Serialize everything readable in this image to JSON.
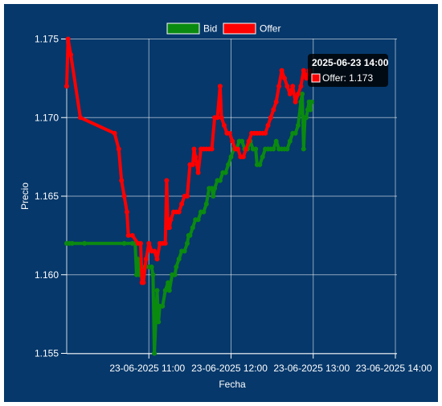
{
  "chart_data": {
    "type": "line",
    "xlabel": "Fecha",
    "ylabel": "Precio",
    "ylim": [
      1.155,
      1.175
    ],
    "yticks": [
      "1.175",
      "1.170",
      "1.165",
      "1.160",
      "1.155"
    ],
    "xticks": [
      "23-06-2025 11:00",
      "23-06-2025 12:00",
      "23-06-2025 13:00",
      "23-06-2025 14:00"
    ],
    "x_unit": "minutes since 23-06-2025 10:00",
    "legend_position": "top-center",
    "grid": true,
    "series": [
      {
        "name": "Bid",
        "color": "#0b8a10",
        "points": [
          [
            0,
            1.162
          ],
          [
            2,
            1.162
          ],
          [
            4,
            1.162
          ],
          [
            13,
            1.162
          ],
          [
            42,
            1.162
          ],
          [
            48,
            1.162
          ],
          [
            50,
            1.162
          ],
          [
            51,
            1.16
          ],
          [
            52,
            1.161
          ],
          [
            53,
            1.16
          ],
          [
            55,
            1.1605
          ],
          [
            60,
            1.1605
          ],
          [
            62,
            1.1605
          ],
          [
            63,
            1.16
          ],
          [
            64,
            1.155
          ],
          [
            65,
            1.157
          ],
          [
            66,
            1.159
          ],
          [
            67,
            1.157
          ],
          [
            68,
            1.158
          ],
          [
            70,
            1.158
          ],
          [
            72,
            1.159
          ],
          [
            74,
            1.1595
          ],
          [
            75,
            1.159
          ],
          [
            77,
            1.16
          ],
          [
            79,
            1.16
          ],
          [
            80,
            1.1605
          ],
          [
            82,
            1.161
          ],
          [
            84,
            1.1615
          ],
          [
            86,
            1.1615
          ],
          [
            88,
            1.162
          ],
          [
            89,
            1.1625
          ],
          [
            90,
            1.1625
          ],
          [
            92,
            1.163
          ],
          [
            94,
            1.1635
          ],
          [
            96,
            1.1635
          ],
          [
            98,
            1.164
          ],
          [
            100,
            1.164
          ],
          [
            102,
            1.1645
          ],
          [
            104,
            1.1655
          ],
          [
            106,
            1.1655
          ],
          [
            107,
            1.165
          ],
          [
            108,
            1.1655
          ],
          [
            110,
            1.166
          ],
          [
            112,
            1.166
          ],
          [
            114,
            1.1665
          ],
          [
            116,
            1.1665
          ],
          [
            118,
            1.167
          ],
          [
            120,
            1.1675
          ],
          [
            122,
            1.168
          ],
          [
            124,
            1.168
          ],
          [
            126,
            1.1685
          ],
          [
            128,
            1.1685
          ],
          [
            130,
            1.168
          ],
          [
            132,
            1.168
          ],
          [
            134,
            1.1685
          ],
          [
            136,
            1.168
          ],
          [
            138,
            1.168
          ],
          [
            139,
            1.167
          ],
          [
            141,
            1.167
          ],
          [
            143,
            1.1675
          ],
          [
            145,
            1.168
          ],
          [
            147,
            1.168
          ],
          [
            149,
            1.168
          ],
          [
            151,
            1.168
          ],
          [
            153,
            1.1685
          ],
          [
            155,
            1.168
          ],
          [
            157,
            1.168
          ],
          [
            159,
            1.168
          ],
          [
            161,
            1.168
          ],
          [
            163,
            1.1685
          ],
          [
            165,
            1.169
          ],
          [
            167,
            1.169
          ],
          [
            169,
            1.1695
          ],
          [
            171,
            1.171
          ],
          [
            172,
            1.1715
          ],
          [
            173,
            1.168
          ],
          [
            174,
            1.17
          ],
          [
            175,
            1.17
          ],
          [
            176,
            1.1705
          ],
          [
            177,
            1.171
          ],
          [
            178,
            1.1705
          ],
          [
            179,
            1.171
          ]
        ]
      },
      {
        "name": "Offer",
        "color": "#ff0000",
        "points": [
          [
            0,
            1.172
          ],
          [
            1,
            1.175
          ],
          [
            3,
            1.174
          ],
          [
            10,
            1.17
          ],
          [
            35,
            1.169
          ],
          [
            38,
            1.168
          ],
          [
            40,
            1.166
          ],
          [
            42,
            1.165
          ],
          [
            44,
            1.164
          ],
          [
            45,
            1.1625
          ],
          [
            48,
            1.1625
          ],
          [
            52,
            1.162
          ],
          [
            54,
            1.162
          ],
          [
            55,
            1.1595
          ],
          [
            56,
            1.1595
          ],
          [
            58,
            1.161
          ],
          [
            60,
            1.162
          ],
          [
            62,
            1.1615
          ],
          [
            64,
            1.1615
          ],
          [
            66,
            1.161
          ],
          [
            68,
            1.162
          ],
          [
            70,
            1.162
          ],
          [
            72,
            1.162
          ],
          [
            73,
            1.166
          ],
          [
            74,
            1.163
          ],
          [
            75,
            1.163
          ],
          [
            76,
            1.1635
          ],
          [
            78,
            1.164
          ],
          [
            80,
            1.164
          ],
          [
            82,
            1.164
          ],
          [
            84,
            1.1645
          ],
          [
            86,
            1.165
          ],
          [
            88,
            1.165
          ],
          [
            90,
            1.167
          ],
          [
            92,
            1.167
          ],
          [
            93,
            1.168
          ],
          [
            94,
            1.1675
          ],
          [
            96,
            1.1665
          ],
          [
            98,
            1.168
          ],
          [
            100,
            1.168
          ],
          [
            102,
            1.168
          ],
          [
            104,
            1.168
          ],
          [
            106,
            1.168
          ],
          [
            108,
            1.17
          ],
          [
            110,
            1.17
          ],
          [
            112,
            1.172
          ],
          [
            113,
            1.17
          ],
          [
            115,
            1.1695
          ],
          [
            117,
            1.169
          ],
          [
            119,
            1.169
          ],
          [
            121,
            1.1685
          ],
          [
            123,
            1.168
          ],
          [
            125,
            1.168
          ],
          [
            127,
            1.1675
          ],
          [
            129,
            1.1675
          ],
          [
            131,
            1.168
          ],
          [
            133,
            1.1685
          ],
          [
            135,
            1.169
          ],
          [
            137,
            1.169
          ],
          [
            139,
            1.169
          ],
          [
            141,
            1.169
          ],
          [
            143,
            1.169
          ],
          [
            145,
            1.169
          ],
          [
            147,
            1.1695
          ],
          [
            149,
            1.17
          ],
          [
            151,
            1.1705
          ],
          [
            153,
            1.171
          ],
          [
            155,
            1.172
          ],
          [
            157,
            1.173
          ],
          [
            159,
            1.1725
          ],
          [
            161,
            1.172
          ],
          [
            163,
            1.1715
          ],
          [
            165,
            1.172
          ],
          [
            167,
            1.171
          ],
          [
            169,
            1.1715
          ],
          [
            171,
            1.172
          ],
          [
            173,
            1.173
          ],
          [
            175,
            1.1725
          ],
          [
            177,
            1.173
          ],
          [
            179,
            1.1725
          ]
        ]
      }
    ],
    "tooltip": {
      "title": "2025-06-23 14:00",
      "body": "Offer: 1.173",
      "series": "Offer"
    }
  }
}
